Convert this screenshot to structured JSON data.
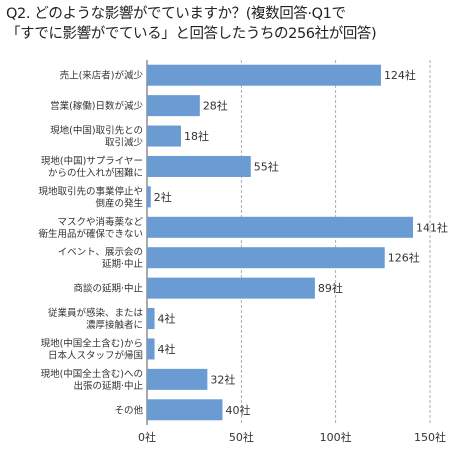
{
  "title_line1": "Q2. どのような影響がでていますか？(複数回答·Q1で",
  "title_line2": "「すでに影響がでている」と回答したうちの256社が回答)",
  "chart_data": {
    "type": "bar",
    "orientation": "horizontal",
    "categories": [
      [
        "売上(来店者)が減少"
      ],
      [
        "営業(稼働)日数が減少"
      ],
      [
        "現地(中国)取引先との",
        "取引減少"
      ],
      [
        "現地(中国)サプライヤー",
        "からの仕入れが困難に"
      ],
      [
        "現地取引先の事業停止や",
        "倒産の発生"
      ],
      [
        "マスクや消毒薬など",
        "衛生用品が確保できない"
      ],
      [
        "イベント、展示会の",
        "延期·中止"
      ],
      [
        "商談の延期·中止"
      ],
      [
        "従業員が感染、または",
        "濃厚接触者に"
      ],
      [
        "現地(中国全土含む)から",
        "日本人スタッフが帰国"
      ],
      [
        "現地(中国全土含む)への",
        "出張の延期·中止"
      ],
      [
        "その他"
      ]
    ],
    "values": [
      124,
      28,
      18,
      55,
      2,
      141,
      126,
      89,
      4,
      4,
      32,
      40
    ],
    "value_labels": [
      "124社",
      "28社",
      "18社",
      "55社",
      "2社",
      "141社",
      "126社",
      "89社",
      "4社",
      "4社",
      "32社",
      "40社"
    ],
    "xlim": [
      0,
      150
    ],
    "xticks": [
      0,
      50,
      100,
      150
    ],
    "xtick_labels": [
      "0社",
      "50社",
      "100社",
      "150社"
    ],
    "bar_color": "#6a9bd3",
    "grid": true
  }
}
